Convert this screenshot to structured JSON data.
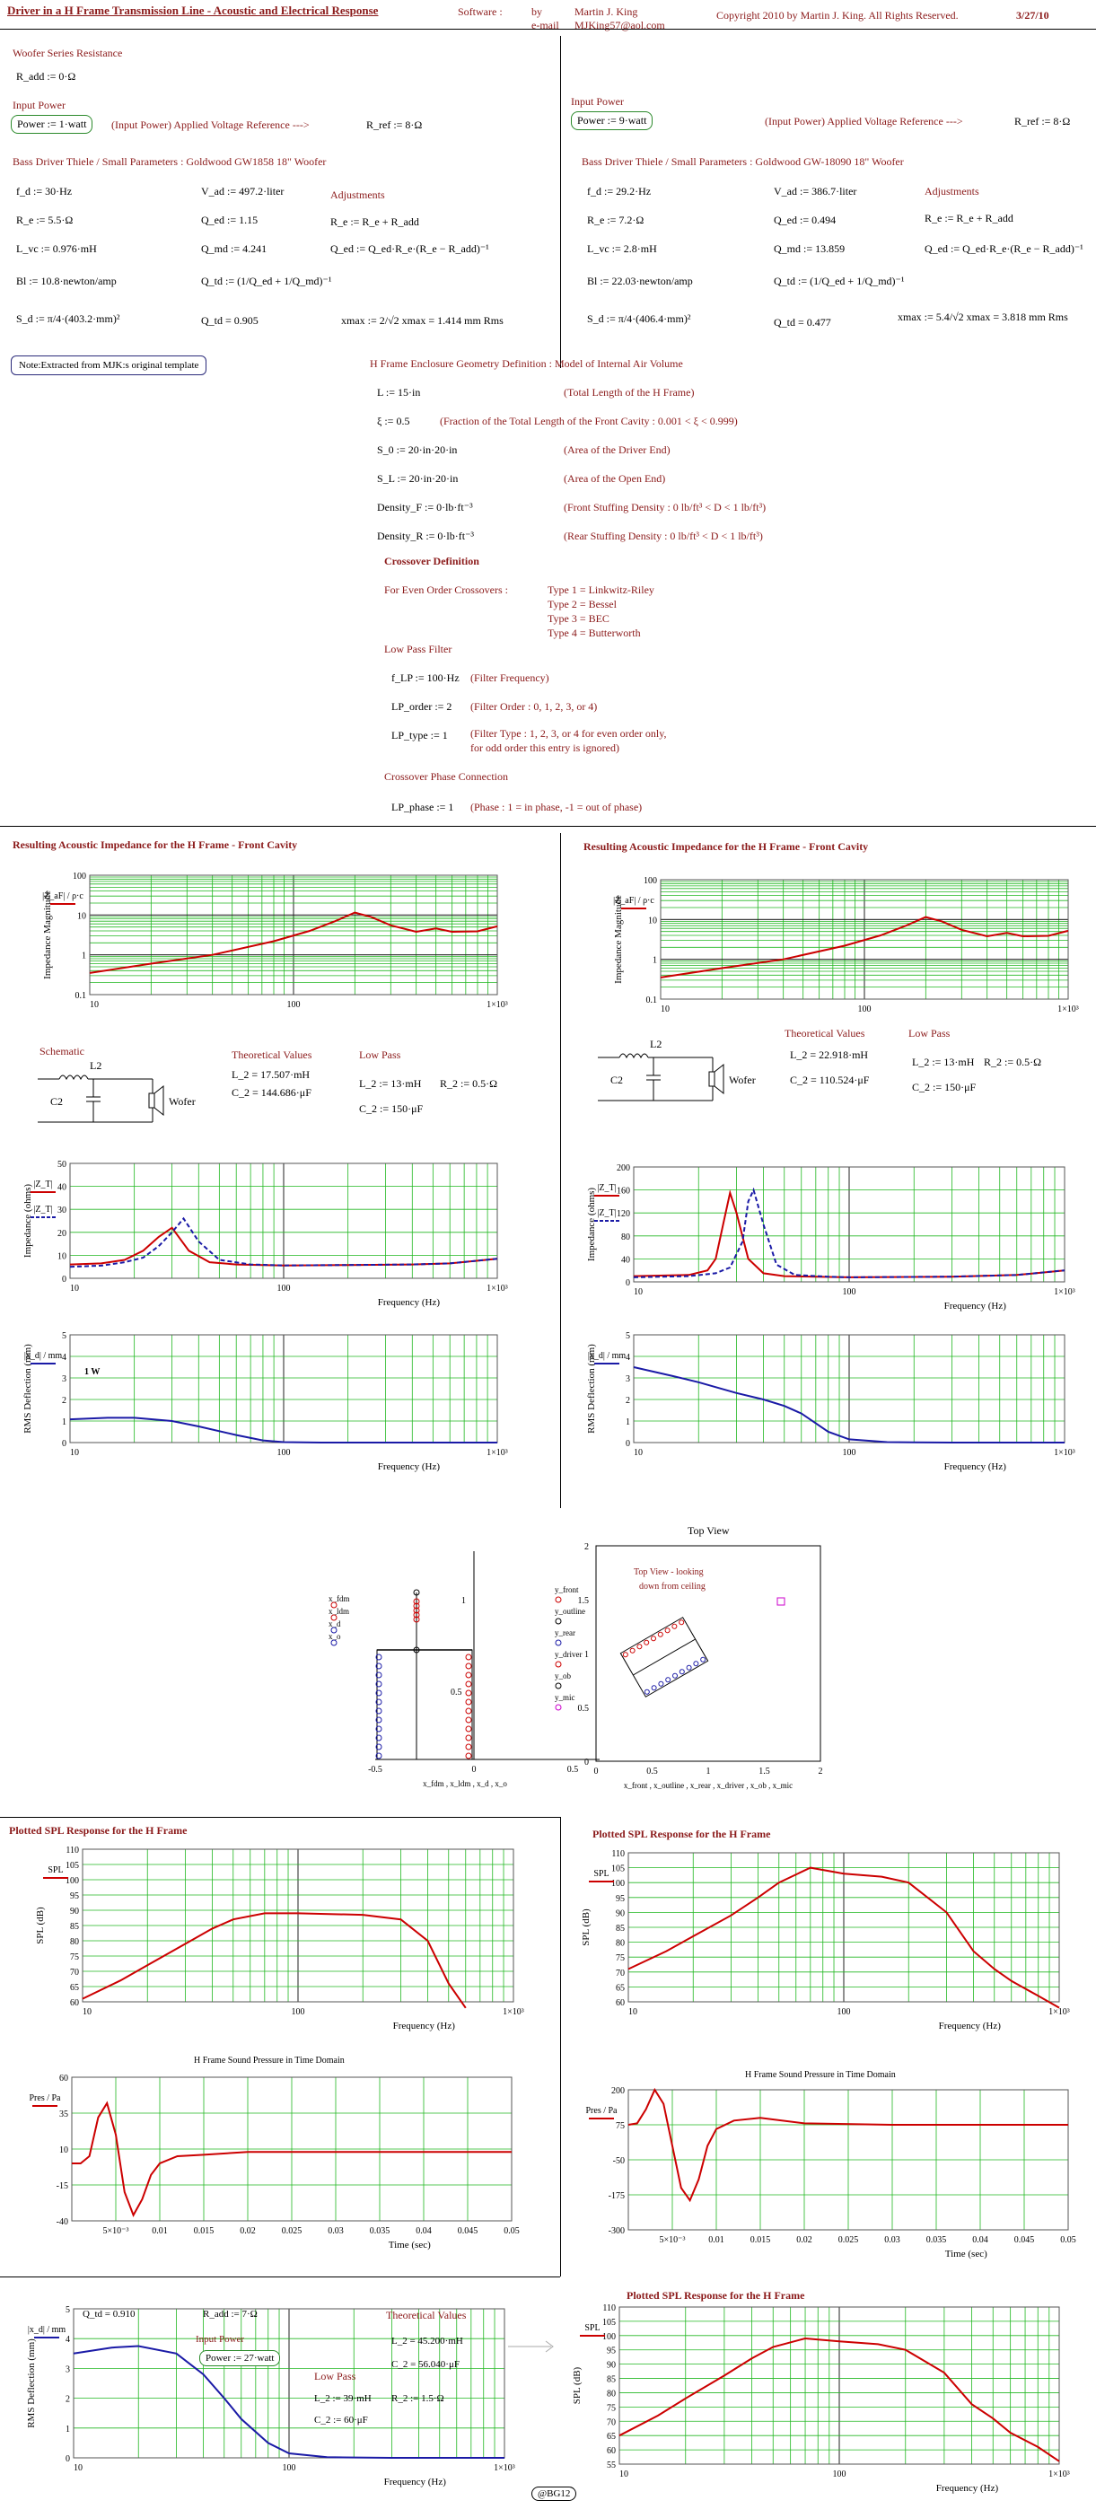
{
  "header": {
    "title": "Driver in a H Frame Transmission Line - Acoustic and Electrical Response",
    "software_label": "Software :",
    "by_label": "by",
    "email_label": "e-mail",
    "author": "Martin J. King",
    "email": "MJKing57@aol.com",
    "copyright": "Copyright 2010 by Martin J. King. All Rights Reserved.",
    "date": "3/27/10"
  },
  "left": {
    "woofer_series_heading": "Woofer Series Resistance",
    "radd": "R_add := 0·Ω",
    "input_power_heading": "Input Power",
    "power_value": "Power := 1·watt",
    "input_power_note": "(Input Power)   Applied Voltage Reference --->",
    "rref": "R_ref := 8·Ω",
    "ts_heading": "Bass Driver Thiele / Small Parameters :  Goldwood GW1858 18\" Woofer",
    "params": [
      "f_d := 30·Hz",
      "R_e := 5.5·Ω",
      "L_vc := 0.976·mH",
      "Bl := 10.8·newton/amp",
      "S_d := π/4·(403.2·mm)²"
    ],
    "params2": [
      "V_ad := 497.2·liter",
      "Q_ed := 1.15",
      "Q_md := 4.241",
      "Q_td := (1/Q_ed + 1/Q_md)⁻¹",
      "Q_td = 0.905"
    ],
    "adjustments_heading": "Adjustments",
    "adjust": [
      "R_e := R_e + R_add",
      "Q_ed := Q_ed·R_e·(R_e − R_add)⁻¹"
    ],
    "xmax": "xmax := 2/√2   xmax = 1.414  mm Rms",
    "note_box": "Note:Extracted from MJK:s  original template"
  },
  "right": {
    "input_power_heading": "Input Power",
    "power_value": "Power := 9·watt",
    "input_power_note": "(Input Power)   Applied Voltage Reference --->",
    "rref": "R_ref := 8·Ω",
    "ts_heading": "Bass Driver Thiele / Small Parameters :  Goldwood GW-18090 18\" Woofer",
    "params": [
      "f_d := 29.2·Hz",
      "R_e := 7.2·Ω",
      "L_vc := 2.8·mH",
      "Bl := 22.03·newton/amp",
      "S_d := π/4·(406.4·mm)²"
    ],
    "params2": [
      "V_ad := 386.7·liter",
      "Q_ed := 0.494",
      "Q_md := 13.859",
      "Q_td := (1/Q_ed + 1/Q_md)⁻¹",
      "Q_td = 0.477"
    ],
    "adjustments_heading": "Adjustments",
    "adjust": [
      "R_e := R_e + R_add",
      "Q_ed := Q_ed·R_e·(R_e − R_add)⁻¹"
    ],
    "xmax": "xmax := 5.4/√2   xmax = 3.818  mm Rms"
  },
  "geometry": {
    "heading": "H Frame Enclosure Geometry Definition : Model of Internal Air Volume",
    "rows": [
      {
        "expr": "L := 15·in",
        "note": "(Total Length of the H Frame)"
      },
      {
        "expr": "ξ := 0.5",
        "note": "(Fraction of the Total Length of the Front Cavity : 0.001 < ξ < 0.999)"
      },
      {
        "expr": "S_0 := 20·in·20·in",
        "note": "(Area of the Driver End)"
      },
      {
        "expr": "S_L := 20·in·20·in",
        "note": "(Area of the Open End)"
      },
      {
        "expr": "Density_F := 0·lb·ft⁻³",
        "note": "(Front Stuffing Density : 0 lb/ft³ < D < 1 lb/ft³)"
      },
      {
        "expr": "Density_R := 0·lb·ft⁻³",
        "note": "(Rear Stuffing Density : 0 lb/ft³ < D < 1 lb/ft³)"
      }
    ],
    "crossover_heading": "Crossover Definition",
    "even_order": "For Even Order Crossovers :",
    "types": [
      "Type 1 = Linkwitz-Riley",
      "Type 2 = Bessel",
      "Type 3 = BEC",
      "Type 4 = Butterworth"
    ],
    "lowpass_heading": "Low Pass Filter",
    "lp_rows": [
      {
        "expr": "f_LP := 100·Hz",
        "note": "(Filter Frequency)"
      },
      {
        "expr": "LP_order := 2",
        "note": "(Filter Order : 0, 1, 2, 3, or 4)"
      },
      {
        "expr": "LP_type := 1",
        "note": "(Filter Type : 1, 2, 3, or 4 for even order only,"
      },
      {
        "expr": "",
        "note": "for odd order this entry is ignored)"
      }
    ],
    "phase_heading": "Crossover Phase Connection",
    "phase_row": {
      "expr": "LP_phase := 1",
      "note": "(Phase : 1 = in phase, -1 = out of phase)"
    }
  },
  "sections": {
    "imp_title": "Resulting Acoustic Impedance for the H Frame - Front Cavity",
    "imp_ylabel": "Impedance Magnitude",
    "schematic_label": "Schematic",
    "theoretical_label": "Theoretical Values",
    "lowpass_label": "Low Pass",
    "left_theory": [
      "L_2 = 17.507·mH",
      "C_2 = 144.686·μF"
    ],
    "left_lp": [
      "L_2 := 13·mH",
      "R_2 := 0.5·Ω",
      "C_2 := 150·μF"
    ],
    "right_theory": [
      "L_2 = 22.918·mH",
      "C_2 = 110.524·μF"
    ],
    "right_lp": [
      "L_2 := 13·mH",
      "R_2 := 0.5·Ω",
      "C_2 := 150·μF"
    ],
    "woofer_label": "Wofer",
    "l2_label": "L2",
    "c2_label": "C2",
    "zt_ylabel": "Impedance (ohms)",
    "rms_ylabel": "RMS Deflection (mm)",
    "freq_label": "Frequency (Hz)",
    "one_w": "1 W",
    "top_view": "Top View",
    "top_view_note1": "Top View - looking",
    "top_view_note2": "down from ceiling",
    "spl_title": "Plotted SPL Response for the H Frame",
    "spl_ylabel": "SPL (dB)",
    "time_title": "H Frame Sound Pressure in Time Domain",
    "time_xlabel": "Time (sec)",
    "legend_front": "y_front",
    "legend_outline": "y_outline",
    "legend_rear": "y_rear",
    "legend_driver": "y_driver",
    "legend_ob": "y_ob",
    "legend_mic": "y_mic",
    "geom_xlabel": "x_fdm , x_ldm , x_d , x_o",
    "geom_ylabels": [
      "x_fdm",
      "x_ldm",
      "x_d",
      "x_o"
    ],
    "top_xlabel": "x_front , x_outline , x_rear , x_driver , x_ob , x_mic"
  },
  "bottom": {
    "qtd": "Q_td = 0.910",
    "radd": "R_add := 7·Ω",
    "input_power": "Input Power",
    "power": "Power := 27·watt",
    "theory": "Theoretical Values",
    "theory_vals": [
      "L_2 = 45.200·mH",
      "C_2 = 56.040·μF"
    ],
    "lowpass": "Low Pass",
    "lp_vals": [
      "L_2 := 39·mH",
      "R_2 := 1.5·Ω",
      "C_2 := 60·μF"
    ],
    "signature": "@BG12"
  },
  "chart_data": [
    {
      "id": "imp_left",
      "type": "line",
      "xscale": "log",
      "xlim": [
        10,
        1000
      ],
      "ylim": [
        0.1,
        100
      ],
      "yscale": "log",
      "xticks": [
        "10",
        "100",
        "1×10³"
      ],
      "yticks": [
        "0.1",
        "1",
        "10",
        "100"
      ],
      "series": [
        {
          "name": "|Z_aF| / ρ·c",
          "color": "#cc0000",
          "x": [
            10,
            20,
            40,
            80,
            120,
            160,
            200,
            240,
            300,
            400,
            500,
            600,
            800,
            1000
          ],
          "y": [
            0.35,
            0.6,
            1.0,
            2.2,
            4.0,
            7.0,
            11.5,
            9.0,
            5.5,
            3.8,
            4.6,
            3.8,
            3.9,
            5.2
          ]
        }
      ]
    },
    {
      "id": "imp_right",
      "type": "line",
      "xscale": "log",
      "xlim": [
        10,
        1000
      ],
      "ylim": [
        0.1,
        100
      ],
      "yscale": "log",
      "xticks": [
        "10",
        "100",
        "1×10³"
      ],
      "yticks": [
        "0.1",
        "1",
        "10",
        "100"
      ],
      "series": [
        {
          "name": "|Z_aF| / ρ·c",
          "color": "#cc0000",
          "x": [
            10,
            20,
            40,
            80,
            120,
            160,
            200,
            240,
            300,
            400,
            500,
            600,
            800,
            1000
          ],
          "y": [
            0.35,
            0.6,
            1.0,
            2.2,
            4.0,
            7.0,
            11.5,
            9.0,
            5.5,
            3.8,
            4.6,
            3.8,
            3.9,
            5.2
          ]
        }
      ]
    },
    {
      "id": "zt_left",
      "type": "line",
      "xscale": "log",
      "xlim": [
        10,
        1000
      ],
      "ylim": [
        0,
        50
      ],
      "xticks": [
        "10",
        "100",
        "1×10³"
      ],
      "yticks": [
        "0",
        "10",
        "20",
        "30",
        "40",
        "50"
      ],
      "series": [
        {
          "name": "|Z_T|",
          "color": "#cc0000",
          "x": [
            10,
            14,
            18,
            22,
            26,
            30,
            36,
            45,
            60,
            80,
            100,
            200,
            400,
            600,
            1000
          ],
          "y": [
            6,
            6.5,
            8,
            12,
            18,
            22,
            12,
            7,
            6,
            5.8,
            5.6,
            5.8,
            6,
            6.5,
            8.5
          ]
        },
        {
          "name": "|Z_T|",
          "color": "#1a1aa6",
          "dash": true,
          "x": [
            10,
            14,
            18,
            22,
            26,
            30,
            34,
            40,
            50,
            70,
            100,
            200,
            400,
            600,
            1000
          ],
          "y": [
            5,
            5.5,
            7,
            9,
            14,
            20,
            26,
            16,
            8,
            6,
            5.6,
            5.8,
            6,
            6.5,
            8.5
          ]
        }
      ]
    },
    {
      "id": "zt_right",
      "type": "line",
      "xscale": "log",
      "xlim": [
        10,
        1000
      ],
      "ylim": [
        0,
        200
      ],
      "xticks": [
        "10",
        "100",
        "1×10³"
      ],
      "yticks": [
        "0",
        "40",
        "80",
        "120",
        "160",
        "200"
      ],
      "series": [
        {
          "name": "|Z_T|",
          "color": "#cc0000",
          "x": [
            10,
            18,
            22,
            24,
            26,
            28,
            30,
            34,
            40,
            50,
            70,
            100,
            300,
            600,
            1000
          ],
          "y": [
            10,
            12,
            20,
            40,
            100,
            155,
            120,
            40,
            15,
            10,
            9,
            8,
            9,
            12,
            20
          ]
        },
        {
          "name": "|Z_T|",
          "color": "#1a1aa6",
          "dash": true,
          "x": [
            10,
            18,
            24,
            28,
            32,
            34,
            36,
            40,
            46,
            56,
            80,
            100,
            300,
            600,
            1000
          ],
          "y": [
            8,
            10,
            15,
            25,
            70,
            140,
            160,
            100,
            30,
            12,
            9,
            8,
            9,
            12,
            20
          ]
        }
      ]
    },
    {
      "id": "rms_left",
      "type": "line",
      "xscale": "log",
      "xlim": [
        10,
        1000
      ],
      "ylim": [
        0,
        5
      ],
      "xticks": [
        "10",
        "100",
        "1×10³"
      ],
      "yticks": [
        "0",
        "1",
        "2",
        "3",
        "4",
        "5"
      ],
      "series": [
        {
          "name": "|x_d| / mm",
          "color": "#1a1aa6",
          "x": [
            10,
            15,
            20,
            30,
            40,
            60,
            80,
            100,
            150,
            300,
            1000
          ],
          "y": [
            1.08,
            1.15,
            1.15,
            1.0,
            0.75,
            0.35,
            0.1,
            0.02,
            0,
            0,
            0
          ]
        }
      ]
    },
    {
      "id": "rms_right",
      "type": "line",
      "xscale": "log",
      "xlim": [
        10,
        1000
      ],
      "ylim": [
        0,
        5
      ],
      "xticks": [
        "10",
        "100",
        "1×10³"
      ],
      "yticks": [
        "0",
        "1",
        "2",
        "3",
        "4",
        "5"
      ],
      "series": [
        {
          "name": "|x_d| / mm",
          "color": "#1a1aa6",
          "x": [
            10,
            15,
            20,
            30,
            40,
            50,
            60,
            80,
            100,
            150,
            300,
            1000
          ],
          "y": [
            3.5,
            3.1,
            2.8,
            2.3,
            2.0,
            1.7,
            1.35,
            0.5,
            0.15,
            0.02,
            0,
            0
          ]
        }
      ]
    },
    {
      "id": "spl_left",
      "type": "line",
      "xscale": "log",
      "xlim": [
        10,
        1000
      ],
      "ylim": [
        60,
        110
      ],
      "xticks": [
        "10",
        "100",
        "1×10³"
      ],
      "yticks": [
        "60",
        "65",
        "70",
        "75",
        "80",
        "85",
        "90",
        "95",
        "100",
        "105",
        "110"
      ],
      "series": [
        {
          "name": "SPL",
          "color": "#cc0000",
          "x": [
            10,
            15,
            20,
            30,
            40,
            50,
            70,
            100,
            200,
            300,
            400,
            500,
            600
          ],
          "y": [
            61,
            67,
            72,
            79,
            84,
            87,
            89,
            89,
            88.5,
            87,
            80,
            66,
            58
          ]
        }
      ]
    },
    {
      "id": "spl_right",
      "type": "line",
      "xscale": "log",
      "xlim": [
        10,
        1000
      ],
      "ylim": [
        60,
        110
      ],
      "xticks": [
        "10",
        "100",
        "1×10³"
      ],
      "yticks": [
        "60",
        "65",
        "70",
        "75",
        "80",
        "85",
        "90",
        "95",
        "100",
        "105",
        "110"
      ],
      "series": [
        {
          "name": "SPL",
          "color": "#cc0000",
          "x": [
            10,
            15,
            20,
            30,
            40,
            50,
            70,
            100,
            150,
            200,
            300,
            400,
            500,
            600,
            800,
            1000
          ],
          "y": [
            71,
            77,
            82,
            89,
            95,
            100,
            105,
            103,
            102,
            100,
            90,
            77,
            71,
            67,
            62,
            58
          ]
        }
      ]
    },
    {
      "id": "time_left",
      "type": "line",
      "xlim": [
        0,
        0.05
      ],
      "ylim": [
        -40,
        60
      ],
      "xticks": [
        "",
        "5×10⁻³",
        "0.01",
        "0.015",
        "0.02",
        "0.025",
        "0.03",
        "0.035",
        "0.04",
        "0.045",
        "0.05"
      ],
      "yticks": [
        "-40",
        "-15",
        "10",
        "35",
        "60"
      ],
      "series": [
        {
          "name": "Pres / Pa",
          "color": "#cc0000",
          "x": [
            0,
            0.001,
            0.002,
            0.003,
            0.004,
            0.005,
            0.006,
            0.007,
            0.008,
            0.009,
            0.01,
            0.012,
            0.015,
            0.02,
            0.03,
            0.05
          ],
          "y": [
            0,
            0,
            5,
            32,
            42,
            20,
            -20,
            -36,
            -25,
            -8,
            0,
            5,
            6,
            8,
            8,
            8
          ]
        }
      ]
    },
    {
      "id": "time_right",
      "type": "line",
      "xlim": [
        0,
        0.05
      ],
      "ylim": [
        -300,
        200
      ],
      "xticks": [
        "",
        "5×10⁻³",
        "0.01",
        "0.015",
        "0.02",
        "0.025",
        "0.03",
        "0.035",
        "0.04",
        "0.045",
        "0.05"
      ],
      "yticks": [
        "-300",
        "-175",
        "-50",
        "75",
        "200"
      ],
      "series": [
        {
          "name": "Pres / Pa",
          "color": "#cc0000",
          "x": [
            0,
            0.001,
            0.002,
            0.003,
            0.004,
            0.005,
            0.006,
            0.007,
            0.008,
            0.009,
            0.01,
            0.012,
            0.015,
            0.02,
            0.03,
            0.05
          ],
          "y": [
            75,
            80,
            130,
            200,
            150,
            0,
            -150,
            -195,
            -120,
            0,
            60,
            90,
            100,
            80,
            75,
            75
          ]
        }
      ]
    },
    {
      "id": "rms_bottom",
      "type": "line",
      "xscale": "log",
      "xlim": [
        10,
        1000
      ],
      "ylim": [
        0,
        5
      ],
      "xticks": [
        "10",
        "100",
        "1×10³"
      ],
      "yticks": [
        "0",
        "1",
        "2",
        "3",
        "4",
        "5"
      ],
      "series": [
        {
          "name": "|x_d| / mm",
          "color": "#1a1aa6",
          "x": [
            10,
            15,
            20,
            30,
            40,
            50,
            60,
            80,
            100,
            150,
            300,
            1000
          ],
          "y": [
            3.5,
            3.7,
            3.75,
            3.5,
            2.8,
            2.0,
            1.3,
            0.5,
            0.15,
            0.02,
            0,
            0
          ]
        }
      ]
    },
    {
      "id": "spl_bottom",
      "type": "line",
      "xscale": "log",
      "xlim": [
        10,
        1000
      ],
      "ylim": [
        55,
        110
      ],
      "xticks": [
        "10",
        "100",
        "1×10³"
      ],
      "yticks": [
        "55",
        "60",
        "65",
        "70",
        "75",
        "80",
        "85",
        "90",
        "95",
        "100",
        "105",
        "110"
      ],
      "series": [
        {
          "name": "SPL",
          "color": "#cc0000",
          "x": [
            10,
            15,
            20,
            30,
            40,
            50,
            70,
            100,
            150,
            200,
            300,
            400,
            500,
            600,
            800,
            1000
          ],
          "y": [
            65,
            72,
            78,
            86,
            92,
            96,
            99,
            98,
            97,
            95,
            87,
            76,
            71,
            66,
            61,
            56
          ]
        }
      ]
    }
  ]
}
